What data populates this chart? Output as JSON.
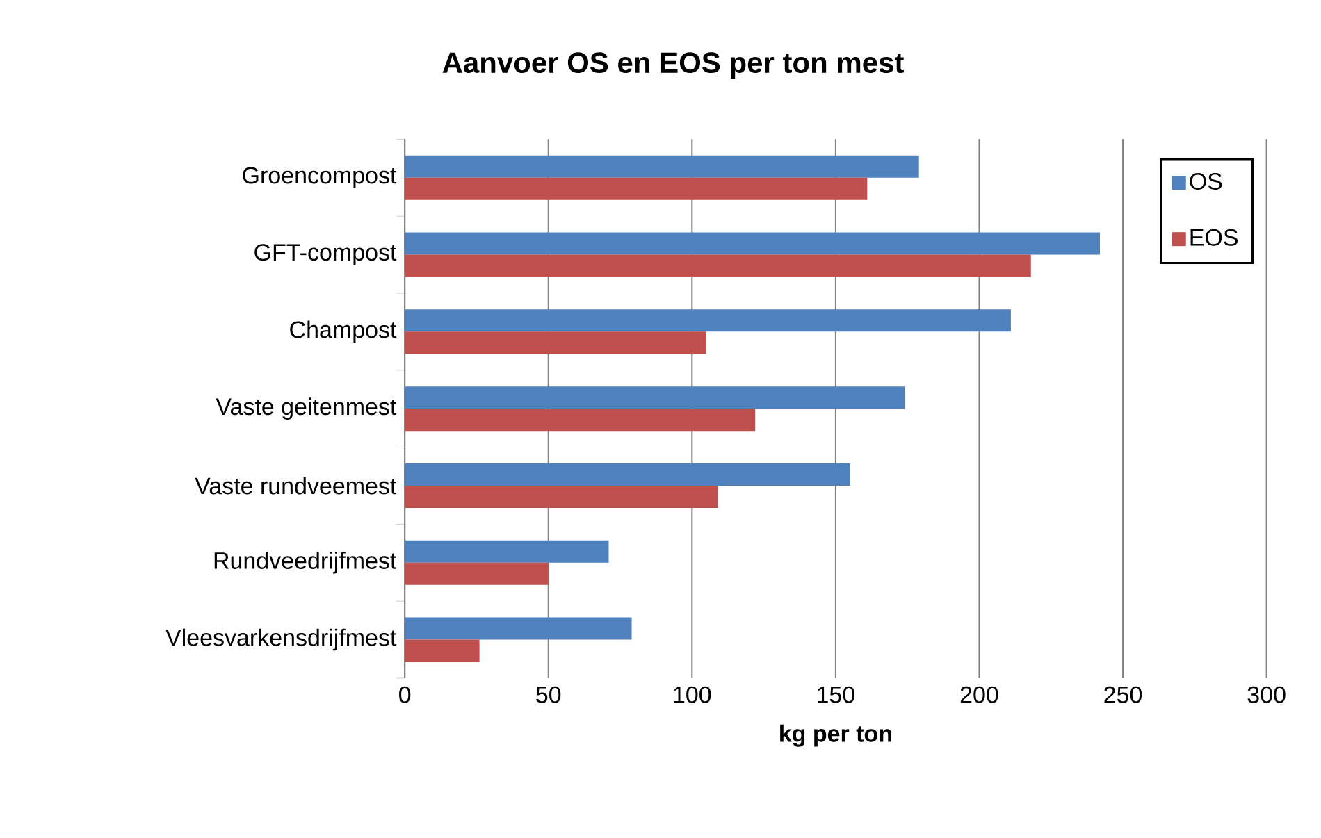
{
  "chart_data": {
    "type": "bar",
    "orientation": "horizontal",
    "title": "Aanvoer OS en EOS per ton mest",
    "xlabel": "kg per ton",
    "categories": [
      "Groencompost",
      "GFT-compost",
      "Champost",
      "Vaste geitenmest",
      "Vaste rundveemest",
      "Rundveedrijfmest",
      "Vleesvarkensdrijfmest"
    ],
    "series": [
      {
        "name": "OS",
        "color": "#4f81bd",
        "values": [
          179,
          242,
          211,
          174,
          155,
          71,
          79
        ]
      },
      {
        "name": "EOS",
        "color": "#c0504d",
        "values": [
          161,
          218,
          105,
          122,
          109,
          50,
          26
        ]
      }
    ],
    "xlim": [
      0,
      300
    ],
    "xticks": [
      0,
      50,
      100,
      150,
      200,
      250,
      300
    ],
    "grid": "x",
    "legend": "top right"
  }
}
